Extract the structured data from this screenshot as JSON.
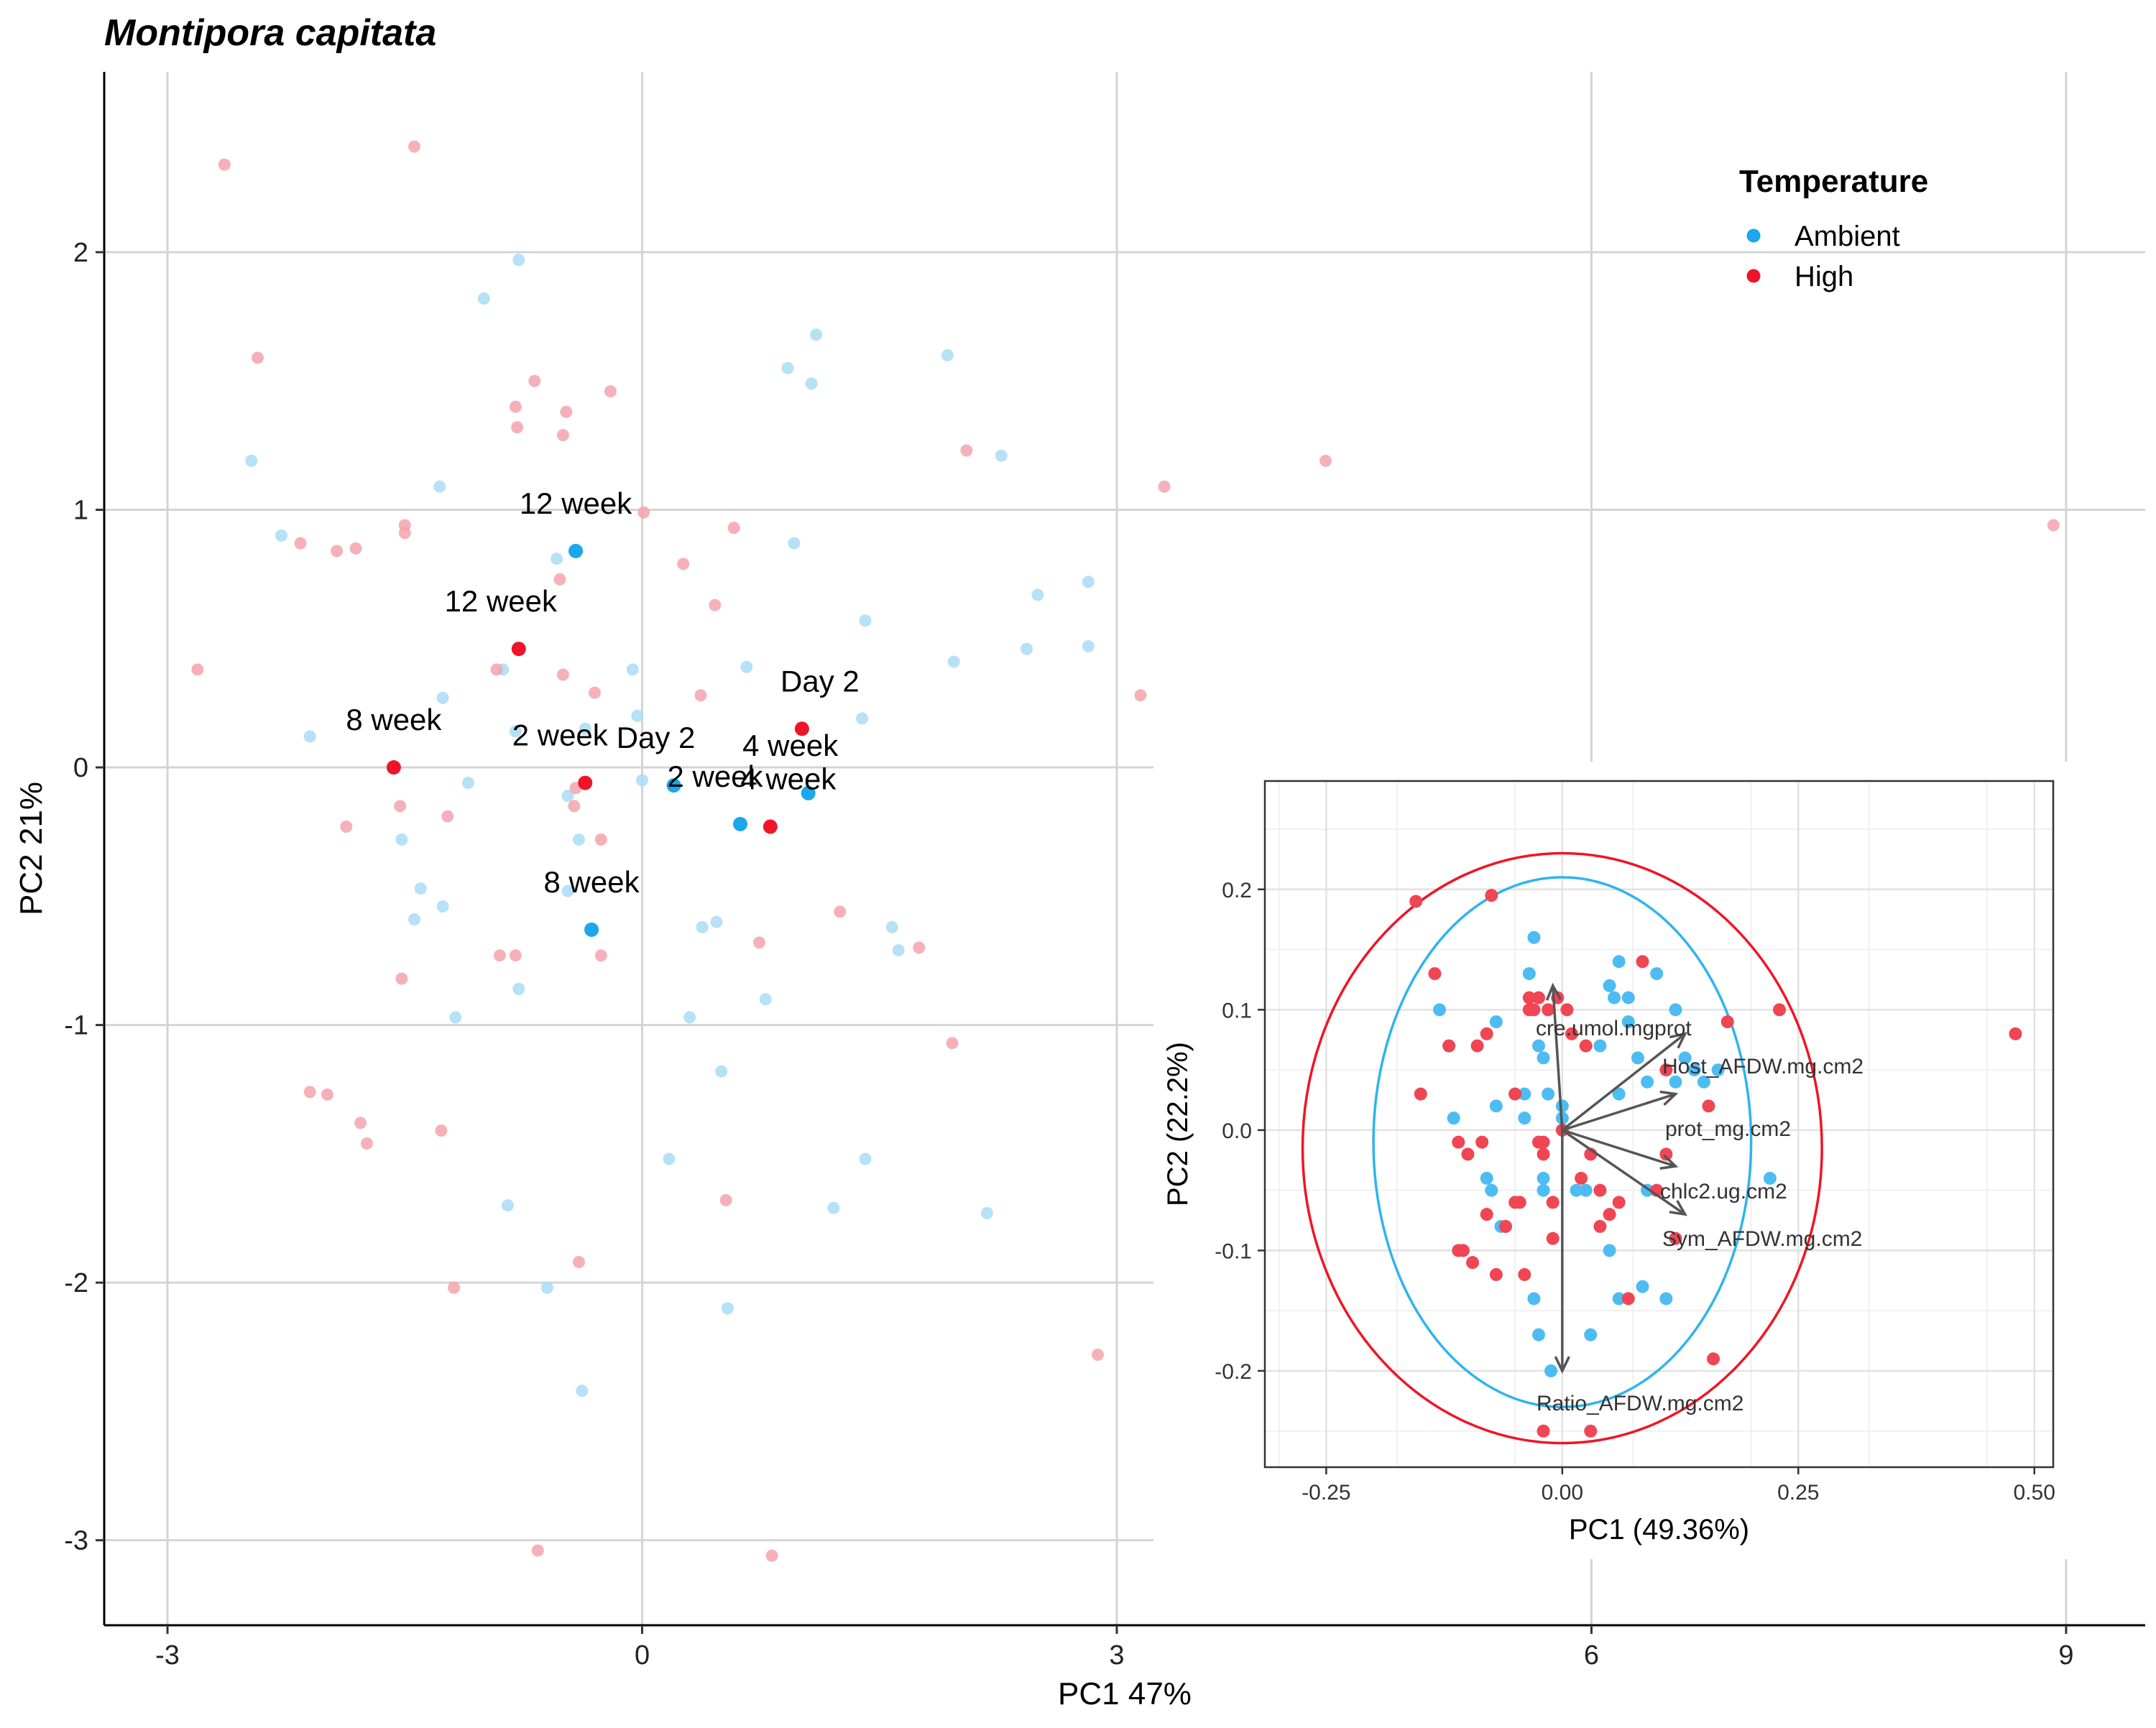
{
  "chart_data": [
    {
      "type": "scatter",
      "title": "Montipora capitata",
      "xlabel": "PC1 47%",
      "ylabel": "PC2 21%",
      "xlim": [
        -3.4,
        9.5
      ],
      "ylim": [
        -3.33,
        2.7
      ],
      "xticks": [
        -3,
        0,
        3,
        6,
        9
      ],
      "yticks": [
        -3,
        -2,
        -1,
        0,
        1,
        2
      ],
      "xtick_labels": [
        "-3",
        "0",
        "3",
        "6",
        "9"
      ],
      "ytick_labels": [
        "-3",
        "-2",
        "-1",
        "0",
        "1",
        "2"
      ],
      "grid": true,
      "legend": {
        "title": "Temperature",
        "position": "top-right",
        "entries": [
          {
            "label": "Ambient",
            "color": "#1aa7ec"
          },
          {
            "label": "High",
            "color": "#f0142a"
          }
        ]
      },
      "colors": {
        "Ambient": "#1aa7ec",
        "High": "#f0142a",
        "ambient_faded": "#a9dcf5",
        "high_faded": "#f4a3ab"
      },
      "series": [
        {
          "name": "Ambient",
          "points": [
            [
              -2.47,
              1.19
            ],
            [
              -2.28,
              0.9
            ],
            [
              -2.1,
              0.12
            ],
            [
              -1.52,
              -0.28
            ],
            [
              -1.4,
              -0.47
            ],
            [
              -1.44,
              -0.59
            ],
            [
              -1.28,
              1.09
            ],
            [
              -1.26,
              0.27
            ],
            [
              -1.26,
              -0.54
            ],
            [
              -1.18,
              -0.97
            ],
            [
              -1.1,
              -0.06
            ],
            [
              -1.0,
              1.82
            ],
            [
              -0.88,
              0.38
            ],
            [
              -0.85,
              -1.7
            ],
            [
              -0.78,
              1.97
            ],
            [
              -0.78,
              -0.86
            ],
            [
              -0.8,
              0.14
            ],
            [
              -0.54,
              0.81
            ],
            [
              -0.47,
              -0.11
            ],
            [
              -0.47,
              -0.48
            ],
            [
              -0.4,
              -0.28
            ],
            [
              -0.36,
              0.15
            ],
            [
              -0.38,
              -2.42
            ],
            [
              -0.6,
              -2.02
            ],
            [
              -0.06,
              0.38
            ],
            [
              -0.03,
              0.2
            ],
            [
              0.17,
              -1.52
            ],
            [
              0.3,
              -0.97
            ],
            [
              0.38,
              -0.62
            ],
            [
              0.47,
              -0.6
            ],
            [
              0.5,
              -1.18
            ],
            [
              0.54,
              -2.1
            ],
            [
              0.66,
              0.39
            ],
            [
              0.78,
              -0.9
            ],
            [
              0.92,
              1.55
            ],
            [
              0.96,
              0.87
            ],
            [
              1.07,
              1.49
            ],
            [
              1.1,
              1.68
            ],
            [
              1.39,
              0.19
            ],
            [
              1.41,
              0.57
            ],
            [
              1.41,
              -1.52
            ],
            [
              1.21,
              -1.71
            ],
            [
              1.58,
              -0.62
            ],
            [
              1.62,
              -0.71
            ],
            [
              1.93,
              1.6
            ],
            [
              1.97,
              0.41
            ],
            [
              2.27,
              1.21
            ],
            [
              2.43,
              0.46
            ],
            [
              2.5,
              0.67
            ],
            [
              2.82,
              0.72
            ],
            [
              2.82,
              0.47
            ],
            [
              2.18,
              -1.73
            ],
            [
              0.0,
              -0.05
            ]
          ]
        },
        {
          "name": "High",
          "points": [
            [
              -2.64,
              2.34
            ],
            [
              -2.81,
              0.38
            ],
            [
              -2.43,
              1.59
            ],
            [
              -2.16,
              0.87
            ],
            [
              -1.93,
              0.84
            ],
            [
              -1.81,
              0.85
            ],
            [
              -2.1,
              -1.26
            ],
            [
              -1.99,
              -1.27
            ],
            [
              -1.87,
              -0.23
            ],
            [
              -1.78,
              -1.38
            ],
            [
              -1.74,
              -1.46
            ],
            [
              -1.5,
              0.94
            ],
            [
              -1.5,
              0.91
            ],
            [
              -1.53,
              -0.15
            ],
            [
              -1.52,
              -0.82
            ],
            [
              -1.44,
              2.41
            ],
            [
              -1.23,
              -0.19
            ],
            [
              -1.27,
              -1.41
            ],
            [
              -1.19,
              -2.02
            ],
            [
              -0.92,
              0.38
            ],
            [
              -0.9,
              -0.73
            ],
            [
              -0.79,
              1.32
            ],
            [
              -0.8,
              1.4
            ],
            [
              -0.8,
              -0.73
            ],
            [
              -0.68,
              1.5
            ],
            [
              -0.66,
              -3.04
            ],
            [
              -0.52,
              0.73
            ],
            [
              -0.5,
              1.29
            ],
            [
              -0.5,
              0.36
            ],
            [
              -0.48,
              1.38
            ],
            [
              -0.42,
              -0.08
            ],
            [
              -0.43,
              -0.15
            ],
            [
              -0.4,
              -1.92
            ],
            [
              -0.3,
              0.29
            ],
            [
              -0.26,
              -0.28
            ],
            [
              -0.26,
              -0.73
            ],
            [
              -0.2,
              1.46
            ],
            [
              0.01,
              0.99
            ],
            [
              0.26,
              0.79
            ],
            [
              0.37,
              0.28
            ],
            [
              0.46,
              0.63
            ],
            [
              0.53,
              -1.68
            ],
            [
              0.58,
              0.93
            ],
            [
              0.74,
              -0.68
            ],
            [
              0.82,
              -3.06
            ],
            [
              1.25,
              -0.56
            ],
            [
              1.75,
              -0.7
            ],
            [
              1.96,
              -1.07
            ],
            [
              2.05,
              1.23
            ],
            [
              3.15,
              0.28
            ],
            [
              3.3,
              1.09
            ],
            [
              4.32,
              1.19
            ],
            [
              2.88,
              -2.28
            ],
            [
              8.92,
              0.94
            ]
          ]
        }
      ],
      "centroids": [
        {
          "group": "Ambient",
          "label": "12 week",
          "x": -0.42,
          "y": 0.84
        },
        {
          "group": "Ambient",
          "label": "8 week",
          "x": -0.32,
          "y": -0.63
        },
        {
          "group": "Ambient",
          "label": "Day 2",
          "x": 0.2,
          "y": -0.07
        },
        {
          "group": "Ambient",
          "label": "2 week",
          "x": 0.62,
          "y": -0.22
        },
        {
          "group": "Ambient",
          "label": "4 week",
          "x": 1.05,
          "y": -0.1
        },
        {
          "group": "High",
          "label": "12 week",
          "x": -0.78,
          "y": 0.46
        },
        {
          "group": "High",
          "label": "8 week",
          "x": -1.57,
          "y": 0.0
        },
        {
          "group": "High",
          "label": "2 week",
          "x": -0.36,
          "y": -0.06
        },
        {
          "group": "High",
          "label": "Day 2",
          "x": 1.01,
          "y": 0.15
        },
        {
          "group": "High",
          "label": "4 week",
          "x": 0.81,
          "y": -0.23
        }
      ]
    },
    {
      "type": "scatter",
      "title": "",
      "xlabel": "PC1 (49.36%)",
      "ylabel": "PC2 (22.2%)",
      "xlim": [
        -0.315,
        0.52
      ],
      "ylim": [
        -0.28,
        0.29
      ],
      "xticks": [
        -0.25,
        0.0,
        0.25,
        0.5
      ],
      "yticks": [
        -0.2,
        -0.1,
        0.0,
        0.1,
        0.2
      ],
      "xtick_labels": [
        "-0.25",
        "0.00",
        "0.25",
        "0.50"
      ],
      "ytick_labels": [
        "-0.2",
        "-0.1",
        "0.0",
        "0.1",
        "0.2"
      ],
      "grid": true,
      "series": [
        {
          "name": "Ambient",
          "points": [
            [
              -0.13,
              0.1
            ],
            [
              -0.12,
              0.07
            ],
            [
              -0.115,
              0.01
            ],
            [
              -0.07,
              0.09
            ],
            [
              -0.07,
              0.02
            ],
            [
              -0.075,
              -0.05
            ],
            [
              -0.08,
              -0.04
            ],
            [
              -0.065,
              -0.08
            ],
            [
              -0.05,
              0.03
            ],
            [
              -0.04,
              0.03
            ],
            [
              -0.04,
              0.01
            ],
            [
              -0.03,
              0.16
            ],
            [
              -0.035,
              0.13
            ],
            [
              -0.025,
              0.07
            ],
            [
              -0.02,
              0.06
            ],
            [
              -0.015,
              0.03
            ],
            [
              -0.03,
              -0.14
            ],
            [
              -0.02,
              -0.05
            ],
            [
              -0.02,
              -0.04
            ],
            [
              -0.025,
              -0.17
            ],
            [
              -0.012,
              -0.2
            ],
            [
              0.0,
              0.02
            ],
            [
              0.0,
              0.01
            ],
            [
              0.015,
              -0.05
            ],
            [
              0.025,
              -0.05
            ],
            [
              0.03,
              -0.17
            ],
            [
              0.04,
              0.07
            ],
            [
              0.06,
              0.03
            ],
            [
              0.07,
              0.09
            ],
            [
              0.05,
              -0.1
            ],
            [
              0.06,
              -0.14
            ],
            [
              0.08,
              0.06
            ],
            [
              0.05,
              0.12
            ],
            [
              0.055,
              0.11
            ],
            [
              0.06,
              0.14
            ],
            [
              0.07,
              0.11
            ],
            [
              0.085,
              -0.13
            ],
            [
              0.1,
              0.13
            ],
            [
              0.12,
              0.1
            ],
            [
              0.13,
              0.06
            ],
            [
              0.12,
              0.04
            ],
            [
              0.14,
              0.05
            ],
            [
              0.15,
              0.04
            ],
            [
              0.165,
              0.05
            ],
            [
              0.09,
              -0.05
            ],
            [
              0.11,
              -0.14
            ],
            [
              0.22,
              -0.04
            ],
            [
              0.09,
              0.04
            ]
          ]
        },
        {
          "name": "High",
          "points": [
            [
              -0.155,
              0.19
            ],
            [
              -0.15,
              0.03
            ],
            [
              -0.135,
              0.13
            ],
            [
              -0.12,
              0.07
            ],
            [
              -0.11,
              -0.1
            ],
            [
              -0.11,
              -0.01
            ],
            [
              -0.105,
              -0.1
            ],
            [
              -0.1,
              -0.02
            ],
            [
              -0.095,
              -0.11
            ],
            [
              -0.09,
              0.07
            ],
            [
              -0.085,
              -0.01
            ],
            [
              -0.08,
              0.08
            ],
            [
              -0.08,
              -0.07
            ],
            [
              -0.07,
              -0.12
            ],
            [
              -0.075,
              0.195
            ],
            [
              -0.06,
              -0.08
            ],
            [
              -0.05,
              0.03
            ],
            [
              -0.05,
              -0.06
            ],
            [
              -0.045,
              -0.06
            ],
            [
              -0.04,
              -0.12
            ],
            [
              -0.035,
              0.11
            ],
            [
              -0.035,
              0.1
            ],
            [
              -0.03,
              0.1
            ],
            [
              -0.025,
              0.11
            ],
            [
              -0.025,
              -0.01
            ],
            [
              -0.02,
              -0.01
            ],
            [
              -0.02,
              -0.02
            ],
            [
              -0.02,
              -0.25
            ],
            [
              -0.015,
              0.1
            ],
            [
              -0.01,
              -0.06
            ],
            [
              -0.01,
              -0.09
            ],
            [
              -0.005,
              0.11
            ],
            [
              0.0,
              0.0
            ],
            [
              0.005,
              0.1
            ],
            [
              0.01,
              0.08
            ],
            [
              0.02,
              -0.04
            ],
            [
              0.025,
              0.07
            ],
            [
              0.03,
              -0.02
            ],
            [
              0.04,
              -0.08
            ],
            [
              0.04,
              -0.05
            ],
            [
              0.05,
              -0.07
            ],
            [
              0.06,
              -0.06
            ],
            [
              0.07,
              -0.14
            ],
            [
              0.085,
              0.14
            ],
            [
              0.1,
              -0.05
            ],
            [
              0.11,
              0.05
            ],
            [
              0.11,
              -0.02
            ],
            [
              0.12,
              -0.09
            ],
            [
              0.155,
              0.02
            ],
            [
              0.16,
              -0.19
            ],
            [
              0.175,
              0.09
            ],
            [
              0.23,
              0.1
            ],
            [
              0.03,
              -0.25
            ],
            [
              0.48,
              0.08
            ]
          ]
        }
      ],
      "ellipses": [
        {
          "group": "Ambient",
          "cx": 0.0,
          "cy": -0.01,
          "rx": 0.2,
          "ry": 0.22
        },
        {
          "group": "High",
          "cx": 0.0,
          "cy": -0.015,
          "rx": 0.275,
          "ry": 0.245
        }
      ],
      "loadings": [
        {
          "label": "cre.umol.mgprot",
          "x": -0.01,
          "y": 0.12
        },
        {
          "label": "Host_AFDW.mg.cm2",
          "x": 0.13,
          "y": 0.08
        },
        {
          "label": "prot_mg.cm2",
          "x": 0.12,
          "y": 0.03
        },
        {
          "label": "chlc2.ug.cm2",
          "x": 0.12,
          "y": -0.03
        },
        {
          "label": "Sym_AFDW.mg.cm2",
          "x": 0.13,
          "y": -0.07
        },
        {
          "label": "Ratio_AFDW.mg.cm2",
          "x": 0.0,
          "y": -0.2
        }
      ]
    }
  ]
}
